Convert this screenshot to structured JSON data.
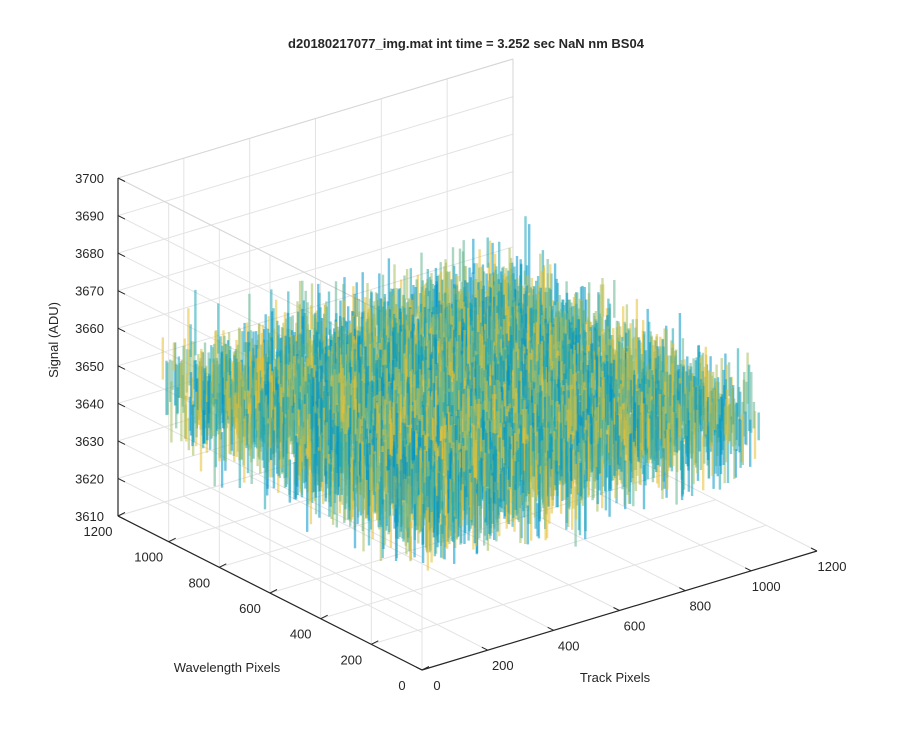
{
  "chart_data": {
    "type": "surface3d",
    "title": "d20180217077_img.mat int time = 3.252 sec  NaN nm BS04",
    "xlabel": "Track Pixels",
    "ylabel": "Wavelength Pixels",
    "zlabel": "Signal (ADU)",
    "xlim": [
      0,
      1200
    ],
    "ylim": [
      0,
      1200
    ],
    "zlim": [
      3610,
      3700
    ],
    "xticks": [
      0,
      200,
      400,
      600,
      800,
      1000,
      1200
    ],
    "yticks": [
      0,
      200,
      400,
      600,
      800,
      1000,
      1200
    ],
    "zticks": [
      3610,
      3620,
      3630,
      3640,
      3650,
      3660,
      3670,
      3680,
      3690,
      3700
    ],
    "grid": true,
    "colormap": "parula",
    "surface": {
      "x_range": [
        0,
        1023
      ],
      "y_range": [
        0,
        1023
      ],
      "signal_mean": 3650,
      "signal_range_typical": [
        3625,
        3680
      ],
      "signal_min_visible": 3612,
      "signal_max_visible": 3688,
      "description_colors": [
        "#0096c8",
        "#1aa6b7",
        "#64b58f",
        "#a8be5f",
        "#e6c033"
      ]
    }
  }
}
